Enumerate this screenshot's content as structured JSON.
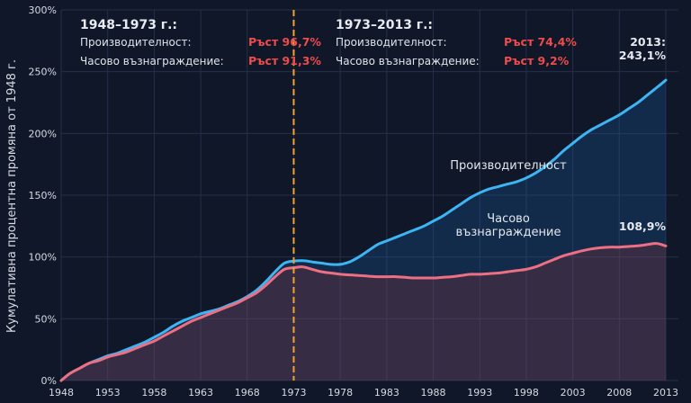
{
  "chart_data": {
    "type": "line",
    "ylabel": "Кумулативна процентна промяна от 1948 г.",
    "xlabel": "",
    "xlim": [
      1948,
      2013
    ],
    "ylim": [
      0,
      300
    ],
    "x_ticks": [
      "1948",
      "1953",
      "1958",
      "1963",
      "1968",
      "1973",
      "1978",
      "1983",
      "1988",
      "1993",
      "1998",
      "2003",
      "2008",
      "2013"
    ],
    "y_ticks": [
      "0%",
      "50%",
      "100%",
      "150%",
      "200%",
      "250%",
      "300%"
    ],
    "grid": true,
    "colors": {
      "productivity": "#3db5f2",
      "compensation": "#ee6f84",
      "divider": "#f4a22d",
      "accent": "#ee4b4b",
      "background": "#0f1729"
    },
    "series": [
      {
        "name": "Производителност",
        "x": [
          1948,
          1949,
          1950,
          1951,
          1952,
          1953,
          1954,
          1955,
          1956,
          1957,
          1958,
          1959,
          1960,
          1961,
          1962,
          1963,
          1964,
          1965,
          1966,
          1967,
          1968,
          1969,
          1970,
          1971,
          1972,
          1973,
          1974,
          1975,
          1976,
          1977,
          1978,
          1979,
          1980,
          1981,
          1982,
          1983,
          1984,
          1985,
          1986,
          1987,
          1988,
          1989,
          1990,
          1991,
          1992,
          1993,
          1994,
          1995,
          1996,
          1997,
          1998,
          1999,
          2000,
          2001,
          2002,
          2003,
          2004,
          2005,
          2006,
          2007,
          2008,
          2009,
          2010,
          2011,
          2012,
          2013
        ],
        "values": [
          0,
          6,
          10,
          14,
          17,
          20,
          22,
          25,
          28,
          31,
          35,
          39,
          44,
          48,
          51,
          54,
          56,
          58,
          61,
          64,
          68,
          73,
          80,
          88,
          95,
          96.7,
          97,
          96,
          95,
          94,
          94,
          96,
          100,
          105,
          110,
          113,
          116,
          119,
          122,
          125,
          129,
          133,
          138,
          143,
          148,
          152,
          155,
          157,
          159,
          161,
          164,
          168,
          173,
          179,
          186,
          192,
          198,
          203,
          207,
          211,
          215,
          220,
          225,
          231,
          237,
          243.1
        ]
      },
      {
        "name": "Часово възнаграждение",
        "x": [
          1948,
          1949,
          1950,
          1951,
          1952,
          1953,
          1954,
          1955,
          1956,
          1957,
          1958,
          1959,
          1960,
          1961,
          1962,
          1963,
          1964,
          1965,
          1966,
          1967,
          1968,
          1969,
          1970,
          1971,
          1972,
          1973,
          1974,
          1975,
          1976,
          1977,
          1978,
          1979,
          1980,
          1981,
          1982,
          1983,
          1984,
          1985,
          1986,
          1987,
          1988,
          1989,
          1990,
          1991,
          1992,
          1993,
          1994,
          1995,
          1996,
          1997,
          1998,
          1999,
          2000,
          2001,
          2002,
          2003,
          2004,
          2005,
          2006,
          2007,
          2008,
          2009,
          2010,
          2011,
          2012,
          2013
        ],
        "values": [
          0,
          6,
          10,
          14,
          16,
          19,
          21,
          23,
          26,
          29,
          32,
          36,
          40,
          44,
          48,
          51,
          54,
          57,
          60,
          63,
          67,
          71,
          77,
          84,
          90,
          91.3,
          92,
          90,
          88,
          87,
          86,
          85.5,
          85,
          84.5,
          84,
          84,
          84,
          83.5,
          83,
          83,
          83,
          83.5,
          84,
          85,
          86,
          86,
          86.5,
          87,
          88,
          89,
          90,
          92,
          95,
          98,
          101,
          103,
          105,
          106.5,
          107.5,
          108,
          108,
          108.5,
          109,
          110,
          111,
          108.9
        ]
      }
    ],
    "divider_year": 1973,
    "annotations": {
      "period1": {
        "heading": "1948–1973 г.:",
        "prod_label": "Производителност:",
        "prod_value": "Ръст 96,7%",
        "comp_label": "Часово възнаграждение:",
        "comp_value": "Ръст 91,3%"
      },
      "period2": {
        "heading": "1973–2013 г.:",
        "prod_label": "Производителност:",
        "prod_value": "Ръст 74,4%",
        "comp_label": "Часово възнаграждение:",
        "comp_value": "Ръст 9,2%"
      },
      "end_year": "2013:",
      "end_prod": "243,1%",
      "end_comp": "108,9%",
      "series_label_prod": "Производителност",
      "series_label_comp_line1": "Часово",
      "series_label_comp_line2": "възнаграждение"
    }
  }
}
